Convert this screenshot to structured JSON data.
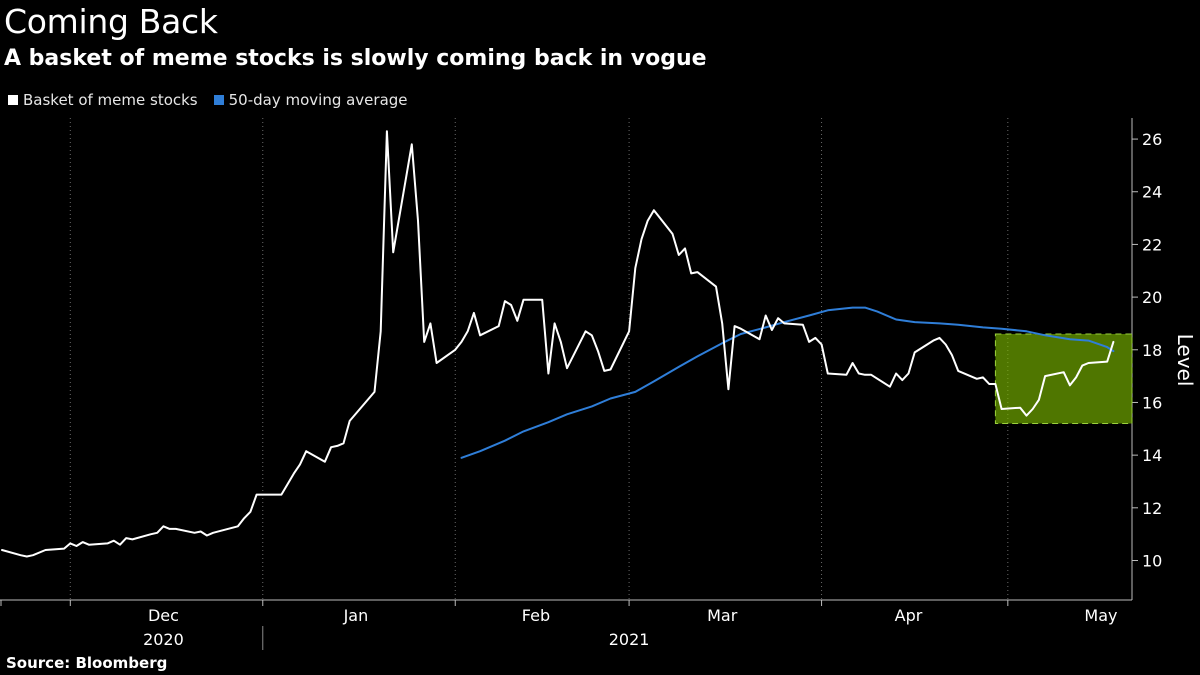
{
  "title": "Coming Back",
  "subtitle": "A basket of meme stocks is slowly coming back in vogue",
  "source": "Source: Bloomberg",
  "colors": {
    "background": "#000000",
    "basket": "#ffffff",
    "moving_average": "#2f7ed8",
    "highlight_fill": "#7fbf00",
    "highlight_border": "#9bd23c"
  },
  "legend": [
    {
      "name": "Basket of meme stocks",
      "color": "#ffffff"
    },
    {
      "name": "50-day moving average",
      "color": "#2f7ed8"
    }
  ],
  "chart_data": {
    "type": "line",
    "title": "Coming Back",
    "subtitle": "A basket of meme stocks is slowly coming back in vogue",
    "xlabel": "",
    "ylabel": "Level",
    "ylim": [
      8.5,
      26.8
    ],
    "yticks": [
      10,
      12,
      14,
      16,
      18,
      20,
      22,
      24,
      26
    ],
    "grid": true,
    "legend_position": "top-left",
    "x_range": [
      "2020-11-20",
      "2021-05-21"
    ],
    "month_labels": [
      {
        "label": "Dec",
        "date": "2020-12-16"
      },
      {
        "label": "Jan",
        "date": "2021-01-16"
      },
      {
        "label": "Feb",
        "date": "2021-02-14"
      },
      {
        "label": "Mar",
        "date": "2021-03-16"
      },
      {
        "label": "Apr",
        "date": "2021-04-15"
      },
      {
        "label": "May",
        "date": "2021-05-16"
      }
    ],
    "month_boundaries": [
      "2020-12-01",
      "2021-01-01",
      "2021-02-01",
      "2021-03-01",
      "2021-04-01",
      "2021-05-01"
    ],
    "year_labels": [
      {
        "label": "2020",
        "date": "2020-12-16"
      },
      {
        "label": "2021",
        "date": "2021-03-01"
      }
    ],
    "year_boundary": "2021-01-01",
    "highlight": {
      "x": [
        "2021-04-29",
        "2021-05-21"
      ],
      "y": [
        15.2,
        18.6
      ]
    },
    "series": [
      {
        "name": "Basket of meme stocks",
        "points": [
          [
            "2020-11-20",
            10.4
          ],
          [
            "2020-11-23",
            10.2
          ],
          [
            "2020-11-24",
            10.15
          ],
          [
            "2020-11-25",
            10.2
          ],
          [
            "2020-11-27",
            10.4
          ],
          [
            "2020-11-30",
            10.45
          ],
          [
            "2020-12-01",
            10.65
          ],
          [
            "2020-12-02",
            10.55
          ],
          [
            "2020-12-03",
            10.7
          ],
          [
            "2020-12-04",
            10.6
          ],
          [
            "2020-12-07",
            10.65
          ],
          [
            "2020-12-08",
            10.75
          ],
          [
            "2020-12-09",
            10.6
          ],
          [
            "2020-12-10",
            10.85
          ],
          [
            "2020-12-11",
            10.8
          ],
          [
            "2020-12-14",
            11.0
          ],
          [
            "2020-12-15",
            11.05
          ],
          [
            "2020-12-16",
            11.3
          ],
          [
            "2020-12-17",
            11.2
          ],
          [
            "2020-12-18",
            11.2
          ],
          [
            "2020-12-21",
            11.05
          ],
          [
            "2020-12-22",
            11.1
          ],
          [
            "2020-12-23",
            10.95
          ],
          [
            "2020-12-24",
            11.05
          ],
          [
            "2020-12-28",
            11.3
          ],
          [
            "2020-12-29",
            11.6
          ],
          [
            "2020-12-30",
            11.85
          ],
          [
            "2020-12-31",
            12.5
          ],
          [
            "2021-01-04",
            12.5
          ],
          [
            "2021-01-05",
            12.9
          ],
          [
            "2021-01-06",
            13.3
          ],
          [
            "2021-01-07",
            13.65
          ],
          [
            "2021-01-08",
            14.15
          ],
          [
            "2021-01-11",
            13.75
          ],
          [
            "2021-01-12",
            14.3
          ],
          [
            "2021-01-13",
            14.35
          ],
          [
            "2021-01-14",
            14.45
          ],
          [
            "2021-01-15",
            15.3
          ],
          [
            "2021-01-19",
            16.4
          ],
          [
            "2021-01-20",
            18.7
          ],
          [
            "2021-01-21",
            26.3
          ],
          [
            "2021-01-22",
            21.7
          ],
          [
            "2021-01-25",
            25.8
          ],
          [
            "2021-01-26",
            22.9
          ],
          [
            "2021-01-27",
            18.3
          ],
          [
            "2021-01-28",
            19.0
          ],
          [
            "2021-01-29",
            17.5
          ],
          [
            "2021-02-01",
            18.0
          ],
          [
            "2021-02-02",
            18.3
          ],
          [
            "2021-02-03",
            18.7
          ],
          [
            "2021-02-04",
            19.4
          ],
          [
            "2021-02-05",
            18.55
          ],
          [
            "2021-02-08",
            18.9
          ],
          [
            "2021-02-09",
            19.85
          ],
          [
            "2021-02-10",
            19.7
          ],
          [
            "2021-02-11",
            19.1
          ],
          [
            "2021-02-12",
            19.9
          ],
          [
            "2021-02-15",
            19.9
          ],
          [
            "2021-02-16",
            17.1
          ],
          [
            "2021-02-17",
            19.0
          ],
          [
            "2021-02-18",
            18.3
          ],
          [
            "2021-02-19",
            17.3
          ],
          [
            "2021-02-22",
            18.7
          ],
          [
            "2021-02-23",
            18.55
          ],
          [
            "2021-02-24",
            17.95
          ],
          [
            "2021-02-25",
            17.2
          ],
          [
            "2021-02-26",
            17.25
          ],
          [
            "2021-03-01",
            18.7
          ],
          [
            "2021-03-02",
            21.1
          ],
          [
            "2021-03-03",
            22.2
          ],
          [
            "2021-03-04",
            22.9
          ],
          [
            "2021-03-05",
            23.3
          ],
          [
            "2021-03-08",
            22.4
          ],
          [
            "2021-03-09",
            21.6
          ],
          [
            "2021-03-10",
            21.85
          ],
          [
            "2021-03-11",
            20.9
          ],
          [
            "2021-03-12",
            20.95
          ],
          [
            "2021-03-15",
            20.4
          ],
          [
            "2021-03-16",
            19.0
          ],
          [
            "2021-03-17",
            16.5
          ],
          [
            "2021-03-18",
            18.9
          ],
          [
            "2021-03-19",
            18.8
          ],
          [
            "2021-03-22",
            18.4
          ],
          [
            "2021-03-23",
            19.3
          ],
          [
            "2021-03-24",
            18.75
          ],
          [
            "2021-03-25",
            19.2
          ],
          [
            "2021-03-26",
            19.0
          ],
          [
            "2021-03-29",
            18.95
          ],
          [
            "2021-03-30",
            18.3
          ],
          [
            "2021-03-31",
            18.45
          ],
          [
            "2021-04-01",
            18.2
          ],
          [
            "2021-04-02",
            17.1
          ],
          [
            "2021-04-05",
            17.05
          ],
          [
            "2021-04-06",
            17.5
          ],
          [
            "2021-04-07",
            17.1
          ],
          [
            "2021-04-08",
            17.05
          ],
          [
            "2021-04-09",
            17.05
          ],
          [
            "2021-04-12",
            16.6
          ],
          [
            "2021-04-13",
            17.1
          ],
          [
            "2021-04-14",
            16.85
          ],
          [
            "2021-04-15",
            17.1
          ],
          [
            "2021-04-16",
            17.9
          ],
          [
            "2021-04-19",
            18.35
          ],
          [
            "2021-04-20",
            18.45
          ],
          [
            "2021-04-21",
            18.2
          ],
          [
            "2021-04-22",
            17.8
          ],
          [
            "2021-04-23",
            17.2
          ],
          [
            "2021-04-26",
            16.9
          ],
          [
            "2021-04-27",
            16.95
          ],
          [
            "2021-04-28",
            16.7
          ],
          [
            "2021-04-29",
            16.7
          ],
          [
            "2021-04-30",
            15.75
          ],
          [
            "2021-05-03",
            15.8
          ],
          [
            "2021-05-04",
            15.5
          ],
          [
            "2021-05-05",
            15.75
          ],
          [
            "2021-05-06",
            16.1
          ],
          [
            "2021-05-07",
            17.0
          ],
          [
            "2021-05-10",
            17.15
          ],
          [
            "2021-05-11",
            16.65
          ],
          [
            "2021-05-12",
            16.95
          ],
          [
            "2021-05-13",
            17.4
          ],
          [
            "2021-05-14",
            17.5
          ],
          [
            "2021-05-17",
            17.55
          ],
          [
            "2021-05-18",
            18.3
          ]
        ]
      },
      {
        "name": "50-day moving average",
        "points": [
          [
            "2021-02-02",
            13.9
          ],
          [
            "2021-02-05",
            14.15
          ],
          [
            "2021-02-09",
            14.55
          ],
          [
            "2021-02-12",
            14.9
          ],
          [
            "2021-02-16",
            15.25
          ],
          [
            "2021-02-19",
            15.55
          ],
          [
            "2021-02-23",
            15.85
          ],
          [
            "2021-02-26",
            16.15
          ],
          [
            "2021-03-02",
            16.4
          ],
          [
            "2021-03-05",
            16.8
          ],
          [
            "2021-03-09",
            17.35
          ],
          [
            "2021-03-12",
            17.75
          ],
          [
            "2021-03-16",
            18.25
          ],
          [
            "2021-03-19",
            18.6
          ],
          [
            "2021-03-23",
            18.85
          ],
          [
            "2021-03-26",
            19.05
          ],
          [
            "2021-03-30",
            19.3
          ],
          [
            "2021-04-02",
            19.5
          ],
          [
            "2021-04-06",
            19.6
          ],
          [
            "2021-04-08",
            19.6
          ],
          [
            "2021-04-10",
            19.45
          ],
          [
            "2021-04-13",
            19.15
          ],
          [
            "2021-04-16",
            19.05
          ],
          [
            "2021-04-20",
            19.0
          ],
          [
            "2021-04-23",
            18.95
          ],
          [
            "2021-04-27",
            18.85
          ],
          [
            "2021-04-30",
            18.8
          ],
          [
            "2021-05-04",
            18.7
          ],
          [
            "2021-05-07",
            18.55
          ],
          [
            "2021-05-11",
            18.4
          ],
          [
            "2021-05-14",
            18.35
          ],
          [
            "2021-05-17",
            18.1
          ],
          [
            "2021-05-18",
            17.95
          ]
        ]
      }
    ]
  }
}
